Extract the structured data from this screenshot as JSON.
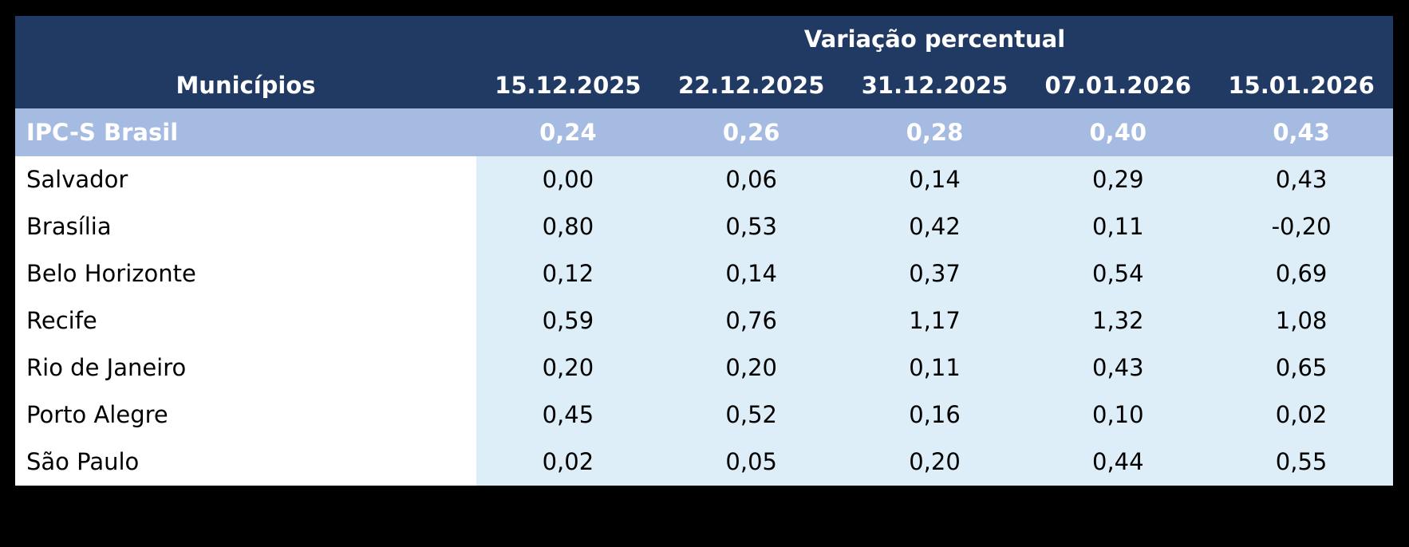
{
  "table": {
    "header": {
      "group_label": "Variação percentual",
      "municipality_label": "Municípios",
      "dates": [
        "15.12.2025",
        "22.12.2025",
        "31.12.2025",
        "07.01.2026",
        "15.01.2026"
      ]
    },
    "highlight_row": {
      "name": "IPC-S Brasil",
      "values": [
        "0,24",
        "0,26",
        "0,28",
        "0,40",
        "0,43"
      ]
    },
    "rows": [
      {
        "name": "Salvador",
        "values": [
          "0,00",
          "0,06",
          "0,14",
          "0,29",
          "0,43"
        ]
      },
      {
        "name": "Brasília",
        "values": [
          "0,80",
          "0,53",
          "0,42",
          "0,11",
          "-0,20"
        ]
      },
      {
        "name": "Belo Horizonte",
        "values": [
          "0,12",
          "0,14",
          "0,37",
          "0,54",
          "0,69"
        ]
      },
      {
        "name": "Recife",
        "values": [
          "0,59",
          "0,76",
          "1,17",
          "1,32",
          "1,08"
        ]
      },
      {
        "name": "Rio de Janeiro",
        "values": [
          "0,20",
          "0,20",
          "0,11",
          "0,43",
          "0,65"
        ]
      },
      {
        "name": "Porto Alegre",
        "values": [
          "0,45",
          "0,52",
          "0,16",
          "0,10",
          "0,02"
        ]
      },
      {
        "name": "São Paulo",
        "values": [
          "0,02",
          "0,05",
          "0,20",
          "0,44",
          "0,55"
        ]
      }
    ],
    "colors": {
      "page_background": "#000000",
      "header_background": "#213A63",
      "header_text": "#FFFFFF",
      "highlight_row_background": "#A6BBE1",
      "highlight_row_text": "#FFFFFF",
      "name_cell_background": "#FFFFFF",
      "value_cell_background": "#DDEEF8",
      "data_text": "#000000"
    }
  },
  "chart_data": {
    "type": "table",
    "title": "Variação percentual",
    "row_header_label": "Municípios",
    "categories": [
      "15.12.2025",
      "22.12.2025",
      "31.12.2025",
      "07.01.2026",
      "15.01.2026"
    ],
    "series": [
      {
        "name": "IPC-S Brasil",
        "values": [
          0.24,
          0.26,
          0.28,
          0.4,
          0.43
        ]
      },
      {
        "name": "Salvador",
        "values": [
          0.0,
          0.06,
          0.14,
          0.29,
          0.43
        ]
      },
      {
        "name": "Brasília",
        "values": [
          0.8,
          0.53,
          0.42,
          0.11,
          -0.2
        ]
      },
      {
        "name": "Belo Horizonte",
        "values": [
          0.12,
          0.14,
          0.37,
          0.54,
          0.69
        ]
      },
      {
        "name": "Recife",
        "values": [
          0.59,
          0.76,
          1.17,
          1.32,
          1.08
        ]
      },
      {
        "name": "Rio de Janeiro",
        "values": [
          0.2,
          0.2,
          0.11,
          0.43,
          0.65
        ]
      },
      {
        "name": "Porto Alegre",
        "values": [
          0.45,
          0.52,
          0.16,
          0.1,
          0.02
        ]
      },
      {
        "name": "São Paulo",
        "values": [
          0.02,
          0.05,
          0.2,
          0.44,
          0.55
        ]
      }
    ],
    "value_format": "comma-decimal, two places",
    "notes": "IPC-S weekly percent variation table; first row is the national aggregate highlighted in periwinkle."
  }
}
